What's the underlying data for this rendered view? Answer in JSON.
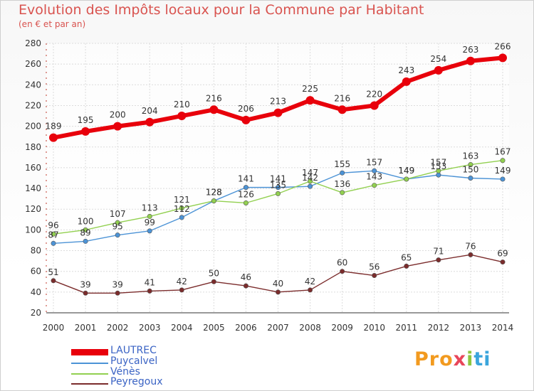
{
  "chart_data": {
    "type": "line",
    "title": "Evolution des Impôts locaux pour la Commune par Habitant",
    "subtitle": "(en € et par an)",
    "x": [
      "2000",
      "2001",
      "2002",
      "2003",
      "2004",
      "2005",
      "2006",
      "2007",
      "2008",
      "2009",
      "2010",
      "2011",
      "2012",
      "2013",
      "2014"
    ],
    "yticks": [
      20,
      40,
      60,
      80,
      100,
      120,
      140,
      160,
      180,
      200,
      220,
      240,
      260,
      280
    ],
    "ylim": [
      20,
      280
    ],
    "grid": true,
    "series": [
      {
        "name": "LAUTREC",
        "color": "#e8000b",
        "values": [
          189,
          195,
          200,
          204,
          210,
          216,
          206,
          213,
          225,
          216,
          220,
          243,
          254,
          263,
          266
        ]
      },
      {
        "name": "Puycalvel",
        "color": "#4c93d6",
        "values": [
          87,
          89,
          95,
          99,
          112,
          128,
          141,
          141,
          142,
          155,
          157,
          149,
          153,
          150,
          149
        ]
      },
      {
        "name": "Vénès",
        "color": "#92d050",
        "values": [
          96,
          100,
          107,
          113,
          121,
          128,
          126,
          135,
          147,
          136,
          143,
          149,
          157,
          163,
          167
        ]
      },
      {
        "name": "Peyregoux",
        "color": "#7b2c2c",
        "values": [
          51,
          39,
          39,
          41,
          42,
          50,
          46,
          40,
          42,
          60,
          56,
          65,
          71,
          76,
          69
        ]
      }
    ]
  },
  "brand": {
    "p1": "Pro",
    "p2": "x",
    "p3": "i",
    "p4": "ti"
  }
}
